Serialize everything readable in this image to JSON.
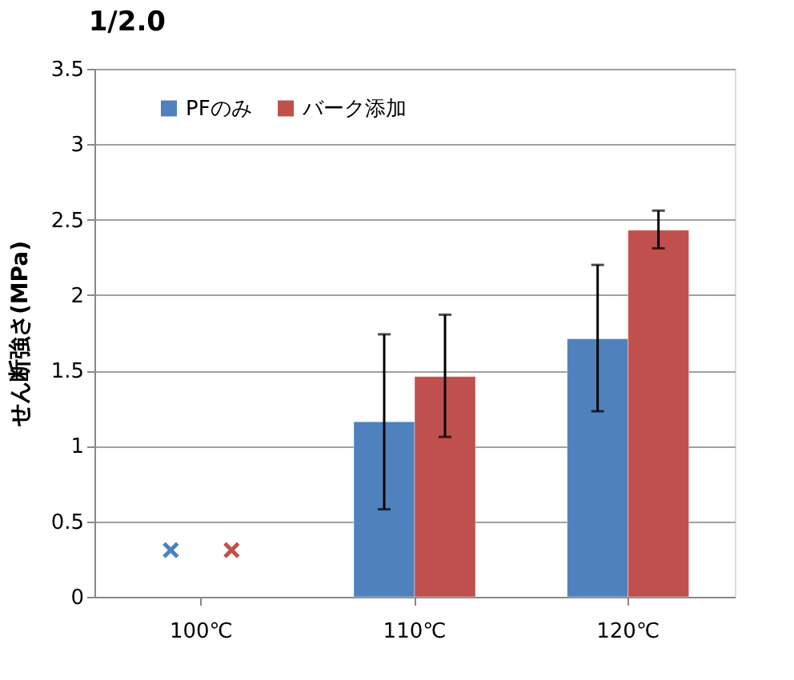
{
  "chart_data": {
    "type": "bar",
    "title": "1/2.0",
    "ylabel": "せん断強さ(MPa)",
    "categories": [
      "100℃",
      "110℃",
      "120℃"
    ],
    "series": [
      {
        "name": "PFのみ",
        "color": "#4f81bd",
        "values": [
          null,
          1.16,
          1.71
        ],
        "errors": [
          null,
          [
            0.58,
            1.74
          ],
          [
            1.23,
            2.2
          ]
        ]
      },
      {
        "name": "バーク添加",
        "color": "#c0504d",
        "values": [
          null,
          1.46,
          2.43
        ],
        "errors": [
          null,
          [
            1.06,
            1.87
          ],
          [
            2.31,
            2.56
          ]
        ]
      },
      {
        "type": "scatter",
        "color": "#4f81bd",
        "x": [
          "100℃"
        ],
        "values": [
          0.31
        ],
        "marker": "cross"
      },
      {
        "type": "scatter",
        "color": "#c0504d",
        "x": [
          "100℃"
        ],
        "values": [
          0.31
        ],
        "marker": "cross"
      }
    ],
    "ylim": [
      0,
      3.5
    ],
    "yticks": [
      0,
      0.5,
      1,
      1.5,
      2,
      2.5,
      3,
      3.5
    ],
    "grid": "y",
    "legend": "top left"
  }
}
